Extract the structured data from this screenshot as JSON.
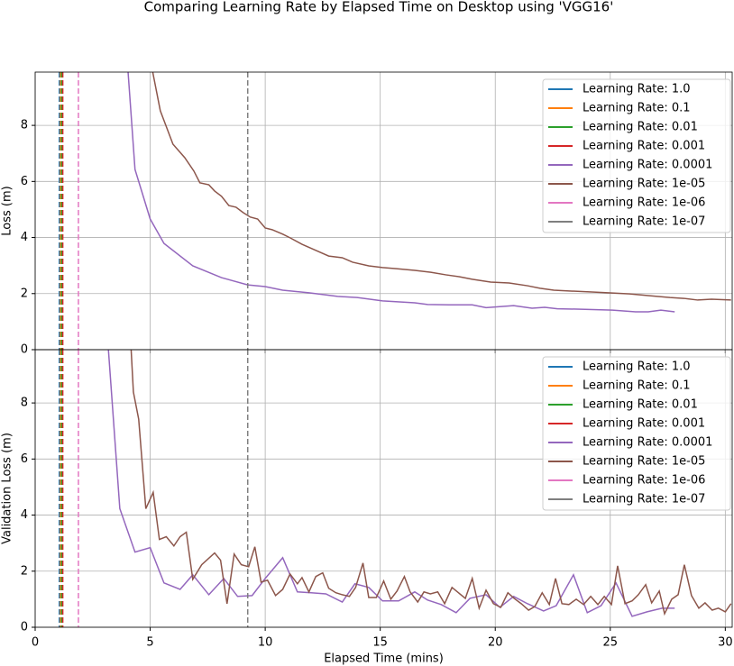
{
  "title": "Comparing Learning Rate by Elapsed Time on Desktop using 'VGG16'",
  "chart_data": [
    {
      "type": "line",
      "ylabel": "Loss (m)",
      "xlim": [
        0,
        30.3
      ],
      "ylim": [
        0,
        9.9
      ],
      "xticks": [
        0,
        5,
        10,
        15,
        20,
        25,
        30
      ],
      "yticks": [
        0,
        2,
        4,
        6,
        8
      ],
      "show_xtick_labels": false,
      "grid": true,
      "legend": "upper right",
      "series": [
        {
          "name": "Learning Rate: 1.0",
          "color": "#1f77b4",
          "vline_x": 1.05
        },
        {
          "name": "Learning Rate: 0.1",
          "color": "#ff7f0e",
          "vline_x": 1.1
        },
        {
          "name": "Learning Rate: 0.01",
          "color": "#2ca02c",
          "vline_x": 1.15
        },
        {
          "name": "Learning Rate: 0.001",
          "color": "#d62728",
          "vline_x": 1.2
        },
        {
          "name": "Learning Rate: 0.0001",
          "color": "#9467bd",
          "x": [
            3.9,
            4.34,
            5.0,
            5.6,
            6.85,
            8.1,
            9.24,
            10,
            10.76,
            11.9,
            13.15,
            14,
            15.1,
            16.5,
            17.06,
            18,
            19,
            19.6,
            20.8,
            21.6,
            22.15,
            22.7,
            23.9,
            25.1,
            26.1,
            26.65,
            27.2,
            27.8
          ],
          "values": [
            11.5,
            6.43,
            4.66,
            3.79,
            2.99,
            2.57,
            2.31,
            2.25,
            2.12,
            2.03,
            1.9,
            1.86,
            1.74,
            1.67,
            1.61,
            1.6,
            1.6,
            1.5,
            1.57,
            1.48,
            1.51,
            1.46,
            1.44,
            1.41,
            1.35,
            1.35,
            1.41,
            1.35
          ]
        },
        {
          "name": "Learning Rate: 1e-05",
          "color": "#8c564b",
          "x": [
            4.8,
            5.44,
            5.99,
            6.5,
            6.9,
            7.16,
            7.55,
            7.8,
            8.1,
            8.42,
            8.73,
            9.04,
            9.35,
            9.67,
            10,
            10.3,
            10.76,
            11.08,
            11.6,
            12.2,
            12.76,
            13.35,
            13.8,
            14.5,
            15.1,
            15.7,
            16.5,
            17.2,
            17.85,
            18.45,
            19.0,
            19.8,
            20.6,
            21.4,
            21.95,
            22.55,
            23.3,
            24.1,
            24.9,
            25.85,
            26.65,
            27.6,
            28.2,
            28.8,
            29.4,
            30.25
          ],
          "values": [
            11.2,
            8.52,
            7.33,
            6.85,
            6.37,
            5.95,
            5.88,
            5.66,
            5.47,
            5.14,
            5.08,
            4.89,
            4.73,
            4.66,
            4.34,
            4.28,
            4.12,
            3.99,
            3.76,
            3.54,
            3.34,
            3.28,
            3.12,
            2.99,
            2.93,
            2.89,
            2.83,
            2.76,
            2.67,
            2.6,
            2.51,
            2.41,
            2.38,
            2.28,
            2.19,
            2.12,
            2.09,
            2.06,
            2.03,
            1.99,
            1.93,
            1.86,
            1.83,
            1.77,
            1.8,
            1.77
          ]
        },
        {
          "name": "Learning Rate: 1e-06",
          "color": "#e377c2",
          "vline_x": 1.88
        },
        {
          "name": "Learning Rate: 1e-07",
          "color": "#7f7f7f",
          "vline_x": 9.24
        }
      ]
    },
    {
      "type": "line",
      "xlabel": "Elapsed Time (mins)",
      "ylabel": "Validation Loss (m)",
      "xlim": [
        0,
        30.3
      ],
      "ylim": [
        0,
        9.9
      ],
      "xticks": [
        0,
        5,
        10,
        15,
        20,
        25,
        30
      ],
      "yticks": [
        0,
        2,
        4,
        6,
        8
      ],
      "show_xtick_labels": true,
      "grid": true,
      "legend": "upper right",
      "series": [
        {
          "name": "Learning Rate: 1.0",
          "color": "#1f77b4",
          "vline_x": 1.05
        },
        {
          "name": "Learning Rate: 0.1",
          "color": "#ff7f0e",
          "vline_x": 1.1
        },
        {
          "name": "Learning Rate: 0.01",
          "color": "#2ca02c",
          "vline_x": 1.15
        },
        {
          "name": "Learning Rate: 0.001",
          "color": "#d62728",
          "vline_x": 1.2
        },
        {
          "name": "Learning Rate: 0.0001",
          "color": "#9467bd",
          "x": [
            3.0,
            3.68,
            4.34,
            5.0,
            5.6,
            6.3,
            6.85,
            7.55,
            8.2,
            8.8,
            9.43,
            10,
            10.76,
            11.4,
            12,
            12.64,
            13.35,
            13.9,
            14.5,
            15.1,
            15.8,
            16.5,
            17.06,
            17.65,
            18.3,
            18.9,
            19.6,
            20.2,
            20.8,
            21.4,
            22.1,
            22.65,
            23.4,
            24.0,
            24.6,
            25.25,
            25.95,
            26.6,
            27.25,
            27.8
          ],
          "values": [
            12,
            4.23,
            2.68,
            2.84,
            1.58,
            1.35,
            1.87,
            1.16,
            1.74,
            1.1,
            1.13,
            1.74,
            2.48,
            1.26,
            1.23,
            1.19,
            0.9,
            1.55,
            1.42,
            0.94,
            0.94,
            1.26,
            0.97,
            0.81,
            0.52,
            1.03,
            1.16,
            0.71,
            1.1,
            0.84,
            0.58,
            0.77,
            1.87,
            0.52,
            0.77,
            1.58,
            0.39,
            0.55,
            0.68,
            0.68
          ]
        },
        {
          "name": "Learning Rate: 1e-05",
          "color": "#8c564b",
          "x": [
            4.1,
            4.27,
            4.5,
            4.81,
            5.13,
            5.4,
            5.7,
            6.03,
            6.3,
            6.57,
            6.85,
            7.24,
            7.8,
            8.06,
            8.34,
            8.65,
            8.96,
            9.28,
            9.55,
            9.82,
            10.1,
            10.45,
            10.76,
            11.08,
            11.4,
            11.6,
            11.9,
            12.2,
            12.5,
            12.76,
            13.07,
            13.35,
            13.66,
            13.93,
            14.25,
            14.5,
            14.83,
            15.15,
            15.46,
            15.73,
            16.05,
            16.3,
            16.63,
            16.9,
            17.18,
            17.5,
            17.8,
            18.12,
            18.4,
            18.7,
            19.0,
            19.3,
            19.6,
            19.92,
            20.24,
            20.55,
            20.82,
            21.13,
            21.45,
            21.72,
            22.04,
            22.35,
            22.62,
            22.9,
            23.2,
            23.52,
            23.84,
            24.15,
            24.46,
            24.74,
            25.05,
            25.32,
            25.64,
            25.95,
            26.22,
            26.54,
            26.8,
            27.13,
            27.36,
            27.67,
            27.95,
            28.22,
            28.53,
            28.85,
            29.12,
            29.43,
            29.7,
            30.0,
            30.25
          ],
          "values": [
            11,
            8.39,
            7.42,
            4.23,
            4.81,
            3.13,
            3.23,
            2.9,
            3.23,
            3.39,
            1.71,
            2.23,
            2.65,
            2.39,
            0.84,
            2.61,
            2.23,
            2.16,
            2.87,
            1.61,
            1.68,
            1.13,
            1.35,
            1.9,
            1.55,
            1.77,
            1.26,
            1.81,
            1.94,
            1.39,
            1.23,
            1.16,
            1.1,
            1.42,
            2.29,
            1.06,
            1.06,
            1.65,
            1.0,
            1.29,
            1.81,
            1.26,
            0.9,
            1.26,
            1.19,
            1.26,
            0.84,
            1.42,
            1.23,
            1.03,
            1.74,
            0.68,
            1.32,
            0.84,
            0.71,
            1.23,
            1.03,
            0.84,
            0.61,
            0.74,
            1.23,
            0.81,
            1.74,
            0.84,
            0.81,
            1.0,
            0.81,
            1.1,
            0.81,
            1.1,
            0.81,
            2.19,
            0.84,
            0.94,
            1.16,
            1.52,
            0.87,
            1.29,
            0.48,
            1.0,
            1.16,
            2.23,
            1.13,
            0.68,
            0.87,
            0.61,
            0.68,
            0.55,
            0.84
          ]
        },
        {
          "name": "Learning Rate: 1e-06",
          "color": "#e377c2",
          "vline_x": 1.88
        },
        {
          "name": "Learning Rate: 1e-07",
          "color": "#7f7f7f",
          "vline_x": 9.24
        }
      ]
    }
  ]
}
